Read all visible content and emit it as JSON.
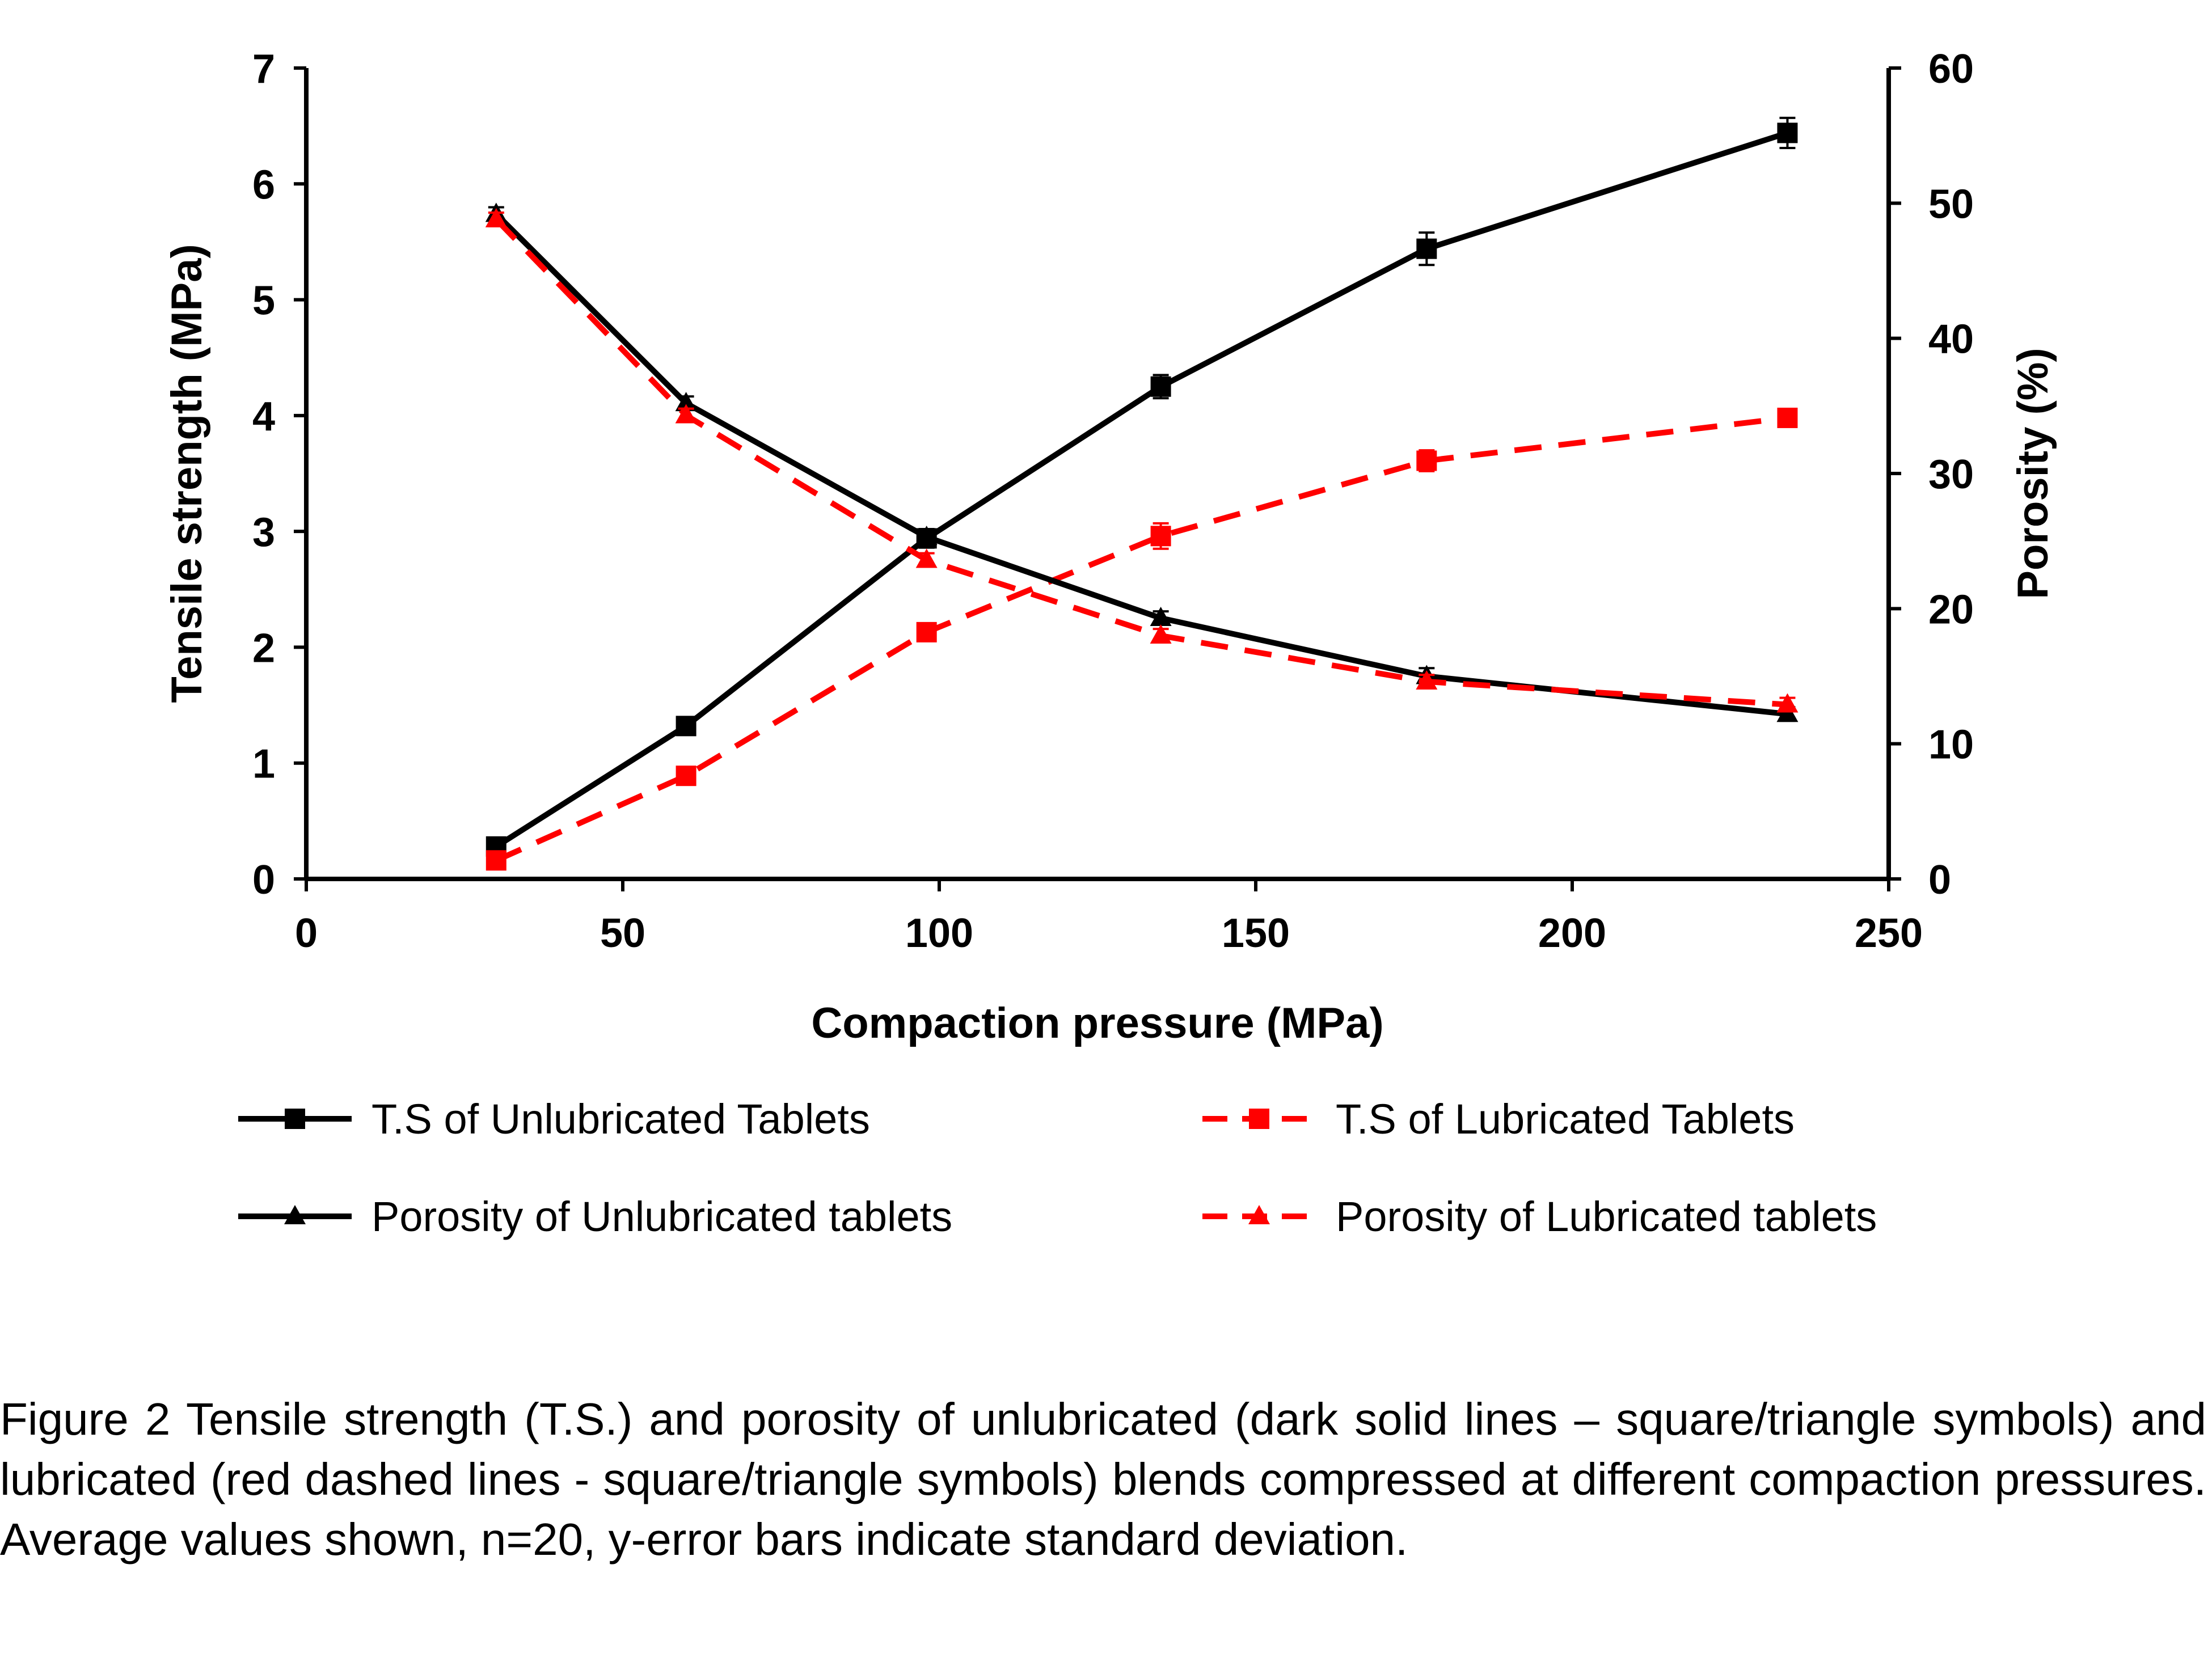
{
  "chart_data": {
    "type": "line",
    "xlabel": "Compaction pressure (MPa)",
    "ylabel": "Tensile strength (MPa)",
    "y2label": "Porosity (%)",
    "xlim": [
      0,
      250
    ],
    "ylim": [
      0,
      7
    ],
    "y2lim": [
      0,
      60
    ],
    "xticks": [
      0,
      50,
      100,
      150,
      200,
      250
    ],
    "yticks": [
      0,
      1,
      2,
      3,
      4,
      5,
      6,
      7
    ],
    "y2ticks": [
      0,
      10,
      20,
      30,
      40,
      50,
      60
    ],
    "grid": false,
    "legend_position": "bottom",
    "series": [
      {
        "name": "T.S of Unlubricated Tablets",
        "axis": "left",
        "color": "#000000",
        "line": "solid",
        "marker": "square",
        "x": [
          30,
          60,
          98,
          135,
          177,
          234
        ],
        "y": [
          0.28,
          1.32,
          2.94,
          4.25,
          5.44,
          6.44
        ],
        "err": [
          0.04,
          0.06,
          0.08,
          0.1,
          0.14,
          0.13
        ]
      },
      {
        "name": "T.S of Lubricated Tablets",
        "axis": "left",
        "color": "#ff0000",
        "line": "dashed",
        "marker": "square",
        "x": [
          30,
          60,
          98,
          135,
          177,
          234
        ],
        "y": [
          0.16,
          0.89,
          2.13,
          2.96,
          3.61,
          3.98
        ],
        "err": [
          0.03,
          0.05,
          0.06,
          0.11,
          0.09,
          0.07
        ]
      },
      {
        "name": "Porosity of Unlubricated tablets",
        "axis": "right",
        "color": "#000000",
        "line": "solid",
        "marker": "triangle",
        "x": [
          30,
          60,
          98,
          135,
          177,
          234
        ],
        "y": [
          49.2,
          35.2,
          25.3,
          19.3,
          15.0,
          12.2
        ],
        "err": [
          0.5,
          0.5,
          0.5,
          0.5,
          0.6,
          0.5
        ]
      },
      {
        "name": "Porosity of Lubricated tablets",
        "axis": "right",
        "color": "#ff0000",
        "line": "dashed",
        "marker": "triangle",
        "x": [
          30,
          60,
          98,
          135,
          177,
          234
        ],
        "y": [
          48.8,
          34.3,
          23.6,
          18.0,
          14.6,
          12.9
        ],
        "err": [
          0.5,
          0.5,
          0.5,
          0.5,
          0.5,
          0.5
        ]
      }
    ]
  },
  "caption": "Figure 2 Tensile strength (T.S.) and porosity of unlubricated (dark solid lines – square/triangle symbols) and lubricated (red dashed lines - square/triangle symbols) blends compressed at different compaction pressures. Average values shown, n=20, y-error bars indicate standard deviation."
}
